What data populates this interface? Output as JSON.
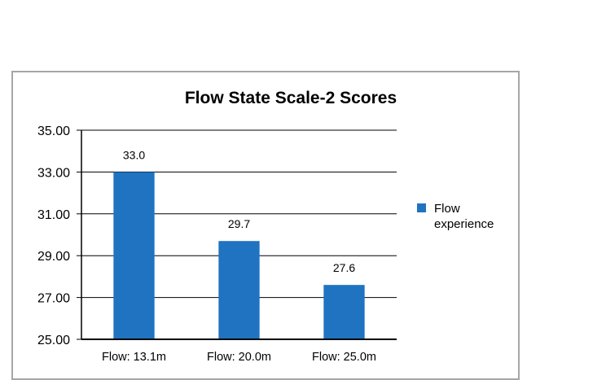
{
  "chart_data": {
    "type": "bar",
    "title": "Flow State Scale-2 Scores",
    "categories": [
      "Flow: 13.1m",
      "Flow: 20.0m",
      "Flow: 25.0m"
    ],
    "series": [
      {
        "name": "Flow experience",
        "legend_lines": [
          "Flow",
          "experience"
        ],
        "values": [
          33.0,
          29.7,
          27.6
        ],
        "data_labels": [
          "33.0",
          "29.7",
          "27.6"
        ],
        "color": "#1f73c1"
      }
    ],
    "y_ticks": [
      "25.00",
      "27.00",
      "29.00",
      "31.00",
      "33.00",
      "35.00"
    ],
    "ylim": [
      25,
      35
    ],
    "grid": true,
    "legend_position": "right"
  }
}
